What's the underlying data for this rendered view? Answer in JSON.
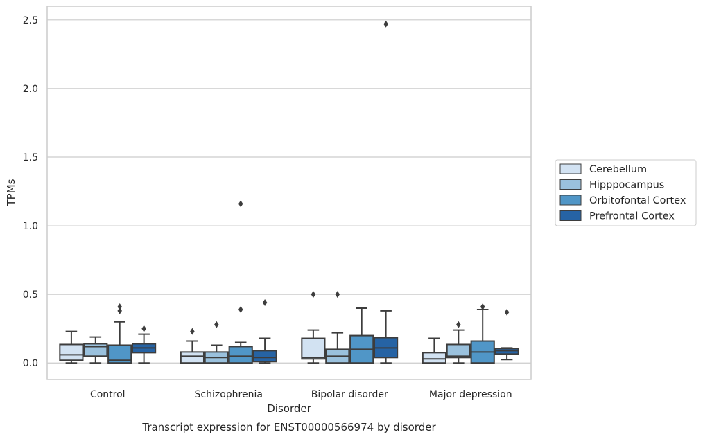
{
  "chart_data": {
    "type": "box",
    "title": "Transcript expression for ENST00000566974 by disorder",
    "xlabel": "Disorder",
    "ylabel": "TPMs",
    "ylim": [
      -0.12,
      2.6
    ],
    "yticks": [
      0.0,
      0.5,
      1.0,
      1.5,
      2.0,
      2.5
    ],
    "ytick_labels": [
      "0.0",
      "0.5",
      "1.0",
      "1.5",
      "2.0",
      "2.5"
    ],
    "grid": "horizontal",
    "legend_position": "right",
    "categories": [
      "Control",
      "Schizophrenia",
      "Bipolar disorder",
      "Major depression"
    ],
    "series": [
      {
        "name": "Cerebellum",
        "color": "#d2e2f2",
        "boxes": [
          {
            "q1": 0.02,
            "median": 0.06,
            "q3": 0.135,
            "whisker_low": 0.0,
            "whisker_high": 0.23,
            "outliers": []
          },
          {
            "q1": 0.0,
            "median": 0.05,
            "q3": 0.08,
            "whisker_low": 0.0,
            "whisker_high": 0.16,
            "outliers": [
              0.23
            ]
          },
          {
            "q1": 0.03,
            "median": 0.04,
            "q3": 0.18,
            "whisker_low": 0.0,
            "whisker_high": 0.24,
            "outliers": [
              0.5
            ]
          },
          {
            "q1": 0.0,
            "median": 0.03,
            "q3": 0.075,
            "whisker_low": 0.0,
            "whisker_high": 0.18,
            "outliers": []
          }
        ]
      },
      {
        "name": "Hipppocampus",
        "color": "#9ac1dd",
        "boxes": [
          {
            "q1": 0.05,
            "median": 0.12,
            "q3": 0.14,
            "whisker_low": 0.0,
            "whisker_high": 0.19,
            "outliers": []
          },
          {
            "q1": 0.0,
            "median": 0.04,
            "q3": 0.08,
            "whisker_low": 0.0,
            "whisker_high": 0.13,
            "outliers": [
              0.28
            ]
          },
          {
            "q1": 0.0,
            "median": 0.05,
            "q3": 0.1,
            "whisker_low": 0.0,
            "whisker_high": 0.22,
            "outliers": [
              0.5
            ]
          },
          {
            "q1": 0.04,
            "median": 0.05,
            "q3": 0.135,
            "whisker_low": 0.0,
            "whisker_high": 0.24,
            "outliers": [
              0.28
            ]
          }
        ]
      },
      {
        "name": "Orbitofontal Cortex",
        "color": "#5096c7",
        "boxes": [
          {
            "q1": 0.0,
            "median": 0.02,
            "q3": 0.13,
            "whisker_low": 0.0,
            "whisker_high": 0.3,
            "outliers": [
              0.38,
              0.41
            ]
          },
          {
            "q1": 0.0,
            "median": 0.05,
            "q3": 0.12,
            "whisker_low": 0.0,
            "whisker_high": 0.15,
            "outliers": [
              0.39,
              1.16
            ]
          },
          {
            "q1": 0.0,
            "median": 0.1,
            "q3": 0.2,
            "whisker_low": 0.0,
            "whisker_high": 0.4,
            "outliers": []
          },
          {
            "q1": 0.0,
            "median": 0.08,
            "q3": 0.16,
            "whisker_low": 0.0,
            "whisker_high": 0.39,
            "outliers": [
              0.41
            ]
          }
        ]
      },
      {
        "name": "Prefrontal Cortex",
        "color": "#2663a4",
        "boxes": [
          {
            "q1": 0.075,
            "median": 0.11,
            "q3": 0.14,
            "whisker_low": 0.0,
            "whisker_high": 0.21,
            "outliers": [
              0.25
            ]
          },
          {
            "q1": 0.01,
            "median": 0.04,
            "q3": 0.09,
            "whisker_low": 0.0,
            "whisker_high": 0.18,
            "outliers": [
              0.44
            ]
          },
          {
            "q1": 0.04,
            "median": 0.11,
            "q3": 0.185,
            "whisker_low": 0.0,
            "whisker_high": 0.38,
            "outliers": [
              2.47
            ]
          },
          {
            "q1": 0.065,
            "median": 0.09,
            "q3": 0.105,
            "whisker_low": 0.025,
            "whisker_high": 0.11,
            "outliers": [
              0.37
            ]
          }
        ]
      }
    ]
  }
}
